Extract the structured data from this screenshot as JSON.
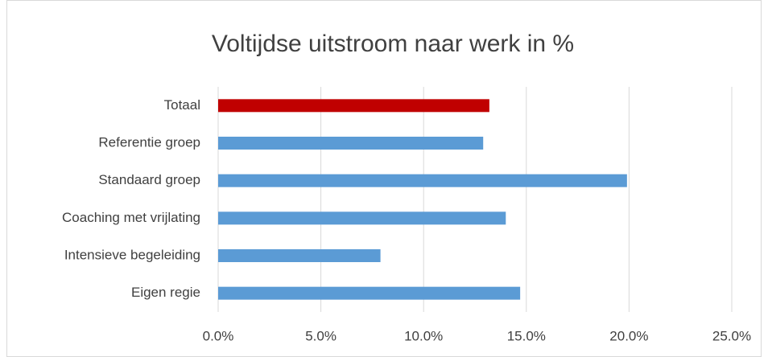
{
  "chart_data": {
    "type": "barh",
    "title": "Voltijdse uitstroom naar werk in %",
    "categories": [
      "Totaal",
      "Referentie groep",
      "Standaard groep",
      "Coaching met vrijlating",
      "Intensieve begeleiding",
      "Eigen regie"
    ],
    "values": [
      13.2,
      12.9,
      19.9,
      14.0,
      7.9,
      14.7
    ],
    "colors": [
      "#c00000",
      "#5b9bd5",
      "#5b9bd5",
      "#5b9bd5",
      "#5b9bd5",
      "#5b9bd5"
    ],
    "xlim": [
      0,
      25
    ],
    "xticks": [
      {
        "value": 0,
        "label": "0.0%"
      },
      {
        "value": 5,
        "label": "5.0%"
      },
      {
        "value": 10,
        "label": "10.0%"
      },
      {
        "value": 15,
        "label": "15.0%"
      },
      {
        "value": 20,
        "label": "20.0%"
      },
      {
        "value": 25,
        "label": "25.0%"
      }
    ],
    "grid": true
  }
}
